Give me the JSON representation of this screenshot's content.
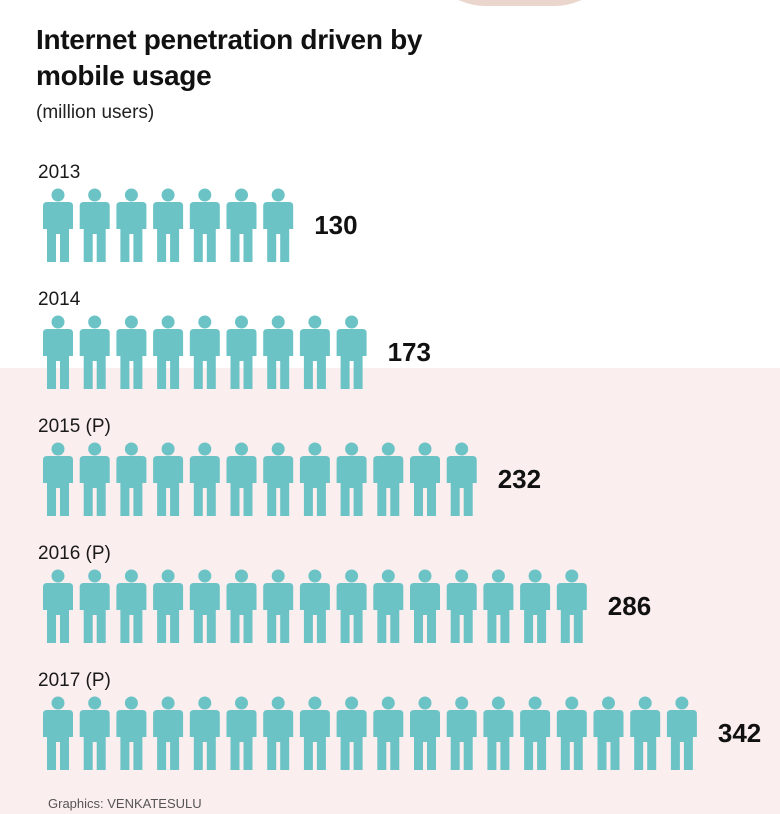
{
  "title": "Internet penetration driven by mobile usage",
  "subtitle": "(million users)",
  "credit": "Graphics: VENKATESULU",
  "colors": {
    "icon": "#6cc3c6",
    "background": "#fbeeee",
    "panel": "#ffffff"
  },
  "icon_name": "person-icon",
  "chart_data": {
    "type": "bar",
    "orientation": "horizontal-pictogram",
    "title": "Internet penetration driven by mobile usage",
    "subtitle": "(million users)",
    "categories": [
      "2013",
      "2014",
      "2015 (P)",
      "2016 (P)",
      "2017 (P)"
    ],
    "values": [
      130,
      173,
      232,
      286,
      342
    ],
    "value_labels": [
      "130",
      "173",
      "232",
      "286",
      "342"
    ],
    "icons_per_row": [
      7,
      9,
      12,
      15,
      18
    ],
    "grid": false,
    "legend": "none"
  }
}
